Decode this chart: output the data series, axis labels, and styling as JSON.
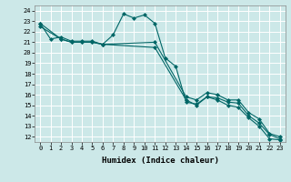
{
  "xlabel": "Humidex (Indice chaleur)",
  "background_color": "#cce8e8",
  "grid_color": "#ffffff",
  "line_color": "#006666",
  "xlim": [
    -0.5,
    23.5
  ],
  "ylim": [
    11.5,
    24.5
  ],
  "xticks": [
    0,
    1,
    2,
    3,
    4,
    5,
    6,
    7,
    8,
    9,
    10,
    11,
    12,
    13,
    14,
    15,
    16,
    17,
    18,
    19,
    20,
    21,
    22,
    23
  ],
  "yticks": [
    12,
    13,
    14,
    15,
    16,
    17,
    18,
    19,
    20,
    21,
    22,
    23,
    24
  ],
  "series1_x": [
    0,
    1,
    2,
    3,
    4,
    5,
    6,
    7,
    8,
    9,
    10,
    11,
    12,
    13,
    14,
    15,
    16,
    17,
    18,
    19,
    20,
    21,
    22,
    23
  ],
  "series1_y": [
    22.8,
    21.3,
    21.5,
    21.1,
    21.1,
    21.1,
    20.8,
    21.7,
    23.7,
    23.3,
    23.6,
    22.8,
    19.5,
    18.7,
    15.3,
    15.1,
    15.8,
    15.7,
    15.3,
    15.2,
    14.0,
    13.3,
    12.2,
    11.8
  ],
  "series2_x": [
    0,
    2,
    3,
    4,
    5,
    6,
    11,
    14,
    15,
    16,
    17,
    18,
    19,
    20,
    21,
    22,
    23
  ],
  "series2_y": [
    22.8,
    21.3,
    21.0,
    21.0,
    21.0,
    20.8,
    20.5,
    15.5,
    15.0,
    15.8,
    15.5,
    15.0,
    14.8,
    13.8,
    13.0,
    11.8,
    11.7
  ],
  "series3_x": [
    0,
    2,
    3,
    4,
    5,
    6,
    11,
    14,
    15,
    16,
    17,
    18,
    19,
    20,
    21,
    22,
    23
  ],
  "series3_y": [
    22.5,
    21.3,
    21.0,
    21.0,
    21.0,
    20.8,
    21.0,
    15.8,
    15.5,
    16.2,
    16.0,
    15.5,
    15.5,
    14.3,
    13.7,
    12.3,
    12.0
  ]
}
